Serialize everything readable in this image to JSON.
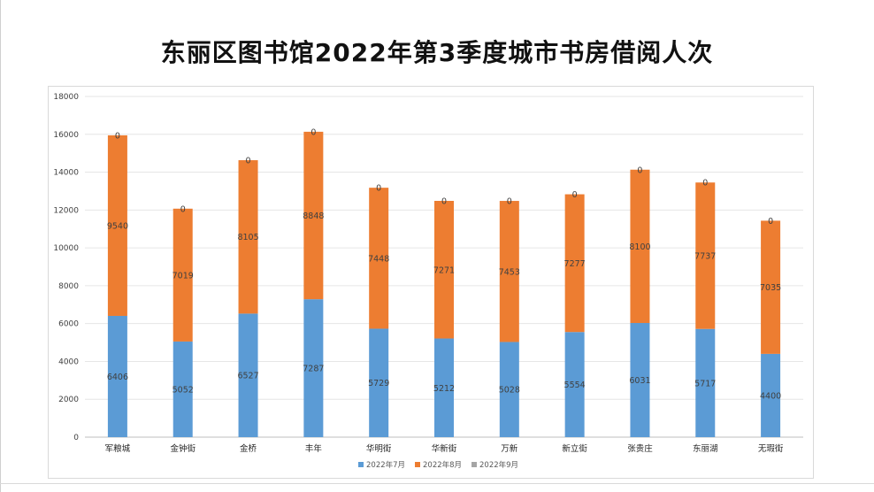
{
  "chart_data": {
    "type": "bar",
    "stacked": true,
    "title": "东丽区图书馆2022年第3季度城市书房借阅人次",
    "categories": [
      "军粮城",
      "金钟街",
      "金桥",
      "丰年",
      "华明街",
      "华新街",
      "万新",
      "新立街",
      "张贵庄",
      "东丽湖",
      "无瑕街"
    ],
    "series": [
      {
        "name": "2022年7月",
        "color": "#5b9bd5",
        "values": [
          6406,
          5052,
          6527,
          7287,
          5729,
          5212,
          5028,
          5554,
          6031,
          5717,
          4400
        ]
      },
      {
        "name": "2022年8月",
        "color": "#ed7d31",
        "values": [
          9540,
          7019,
          8105,
          8848,
          7448,
          7271,
          7453,
          7277,
          8100,
          7737,
          7035
        ]
      },
      {
        "name": "2022年9月",
        "color": "#a5a5a5",
        "values": [
          0,
          0,
          0,
          0,
          0,
          0,
          0,
          0,
          0,
          0,
          0
        ]
      }
    ],
    "ylim": [
      0,
      18000
    ],
    "yticks": [
      0,
      2000,
      4000,
      6000,
      8000,
      10000,
      12000,
      14000,
      16000,
      18000
    ],
    "xlabel": "",
    "ylabel": "",
    "grid": true,
    "legend_position": "bottom"
  }
}
